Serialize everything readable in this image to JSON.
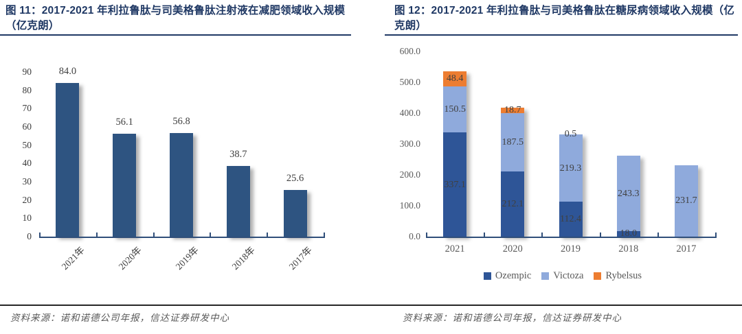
{
  "colors": {
    "title_navy": "#1F3864",
    "axis_navy": "#2F4E79",
    "value_label_gray": "#404040",
    "tick_gray": "#595959",
    "left_bar_blue": "#2E5481",
    "ozempic_dark_blue": "#2E5597",
    "victoza_light_blue": "#8FAADC",
    "rybelsus_orange": "#ED7D31"
  },
  "figures": [
    {
      "title": "图  11：2017-2021 年利拉鲁肽与司美格鲁肽注射液在减肥领域收入规模（亿克朗）",
      "source": "资料来源：诺和诺德公司年报，信达证券研发中心"
    },
    {
      "title": "图  12：2017-2021 年利拉鲁肽与司美格鲁肽在糖尿病领域收入规模（亿克朗）",
      "source": "资料来源：诺和诺德公司年报，信达证券研发中心"
    }
  ],
  "chart_data": [
    {
      "type": "bar",
      "title": "2017-2021 年利拉鲁肽与司美格鲁肽注射液在减肥领域收入规模（亿克朗）",
      "categories": [
        "2021年",
        "2020年",
        "2019年",
        "2018年",
        "2017年"
      ],
      "values": [
        84.0,
        56.1,
        56.8,
        38.7,
        25.6
      ],
      "bar_color": "#2E5481",
      "ylim": [
        0,
        90
      ],
      "ytick_step": 10,
      "ytick_decimals": 0,
      "grid": false,
      "legend_position": "none",
      "xlabel": "",
      "ylabel": ""
    },
    {
      "type": "bar",
      "subtype": "stacked",
      "title": "2017-2021 年利拉鲁肽与司美格鲁肽在糖尿病领域收入规模（亿克朗）",
      "categories": [
        "2021",
        "2020",
        "2019",
        "2018",
        "2017"
      ],
      "series": [
        {
          "name": "Ozempic",
          "color": "#2E5597",
          "values": [
            337.1,
            212.1,
            112.4,
            18.0,
            null
          ]
        },
        {
          "name": "Victoza",
          "color": "#8FAADC",
          "values": [
            150.5,
            187.5,
            219.3,
            243.3,
            231.7
          ]
        },
        {
          "name": "Rybelsus",
          "color": "#ED7D31",
          "values": [
            48.4,
            18.7,
            0.5,
            null,
            null
          ]
        }
      ],
      "ylim": [
        0,
        600
      ],
      "ytick_step": 100,
      "ytick_decimals": 1,
      "grid": false,
      "legend_position": "bottom",
      "legend": [
        "Ozempic",
        "Victoza",
        "Rybelsus"
      ],
      "xlabel": "",
      "ylabel": ""
    }
  ]
}
